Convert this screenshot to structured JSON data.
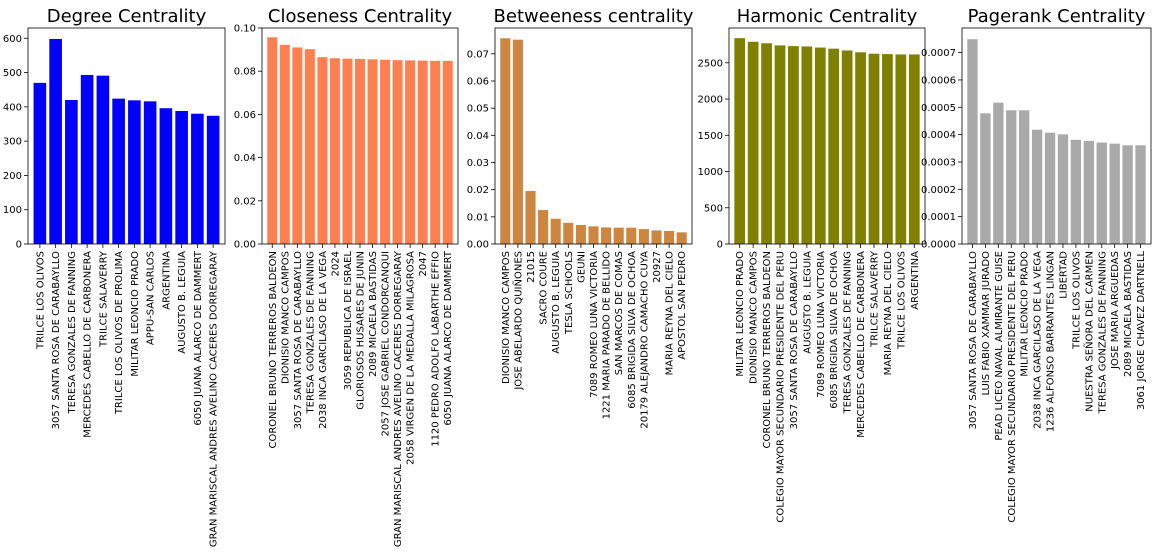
{
  "chart_data": [
    {
      "type": "bar",
      "title": "Degree Centrality",
      "color": "#0000ff",
      "ylim": [
        0,
        630
      ],
      "yticks": [
        0,
        100,
        200,
        300,
        400,
        500,
        600
      ],
      "ytick_labels": [
        "0",
        "100",
        "200",
        "300",
        "400",
        "500",
        "600"
      ],
      "categories": [
        "TRILCE LOS OLIVOS",
        "3057 SANTA ROSA DE CARABAYLLO",
        "TERESA GONZALES DE FANNING",
        "MERCEDES CABELLO DE CARBONERA",
        "TRILCE SALAVERRY",
        "TRILCE LOS OLIVOS DE PROLIMA",
        "MILITAR LEONCIO PRADO",
        "APPU-SAN CARLOS",
        "ARGENTINA",
        "AUGUSTO B. LEGUIA",
        "6050 JUANA ALARCO DE DAMMERT",
        "GRAN MARISCAL ANDRES AVELINO CACERES DORREGARAY"
      ],
      "values": [
        470,
        598,
        420,
        493,
        491,
        424,
        419,
        416,
        396,
        388,
        380,
        374
      ]
    },
    {
      "type": "bar",
      "title": "Closeness Centrality",
      "color": "#ff7f50",
      "ylim": [
        0,
        0.1
      ],
      "yticks": [
        0,
        0.02,
        0.04,
        0.06,
        0.08,
        0.1
      ],
      "ytick_labels": [
        "0.00",
        "0.02",
        "0.04",
        "0.06",
        "0.08",
        "0.10"
      ],
      "categories": [
        "CORONEL BRUNO TERREROS BALDEON",
        "DIONISIO MANCO CAMPOS",
        "3057 SANTA ROSA DE CARABAYLLO",
        "TERESA GONZALES DE FANNING",
        "2038 INCA GARCILASO DE LA VEGA",
        "2024",
        "3059 REPUBLICA DE ISRAEL",
        "GLORIOSOS HUSARES DE JUNIN",
        "2089 MICAELA BASTIDAS",
        "2057 JOSE GABRIEL CONDORCANQUI",
        "GRAN MARISCAL ANDRES AVELINO CACERES DORREGARAY",
        "2058 VIRGEN DE LA MEDALLA MILAGROSA",
        "2047",
        "1120 PEDRO ADOLFO LABARTHE EFFIO",
        "6050 JUANA ALARCO DE DAMMERT"
      ],
      "values": [
        0.0957,
        0.0922,
        0.091,
        0.0902,
        0.0865,
        0.086,
        0.0858,
        0.0857,
        0.0855,
        0.0853,
        0.0851,
        0.085,
        0.0849,
        0.0848,
        0.0848
      ]
    },
    {
      "type": "bar",
      "title": "Betweeness centrality",
      "color": "#cd853f",
      "ylim": [
        0,
        0.0795
      ],
      "yticks": [
        0,
        0.01,
        0.02,
        0.03,
        0.04,
        0.05,
        0.06,
        0.07
      ],
      "ytick_labels": [
        "0.00",
        "0.01",
        "0.02",
        "0.03",
        "0.04",
        "0.05",
        "0.06",
        "0.07"
      ],
      "categories": [
        "DIONISIO MANCO CAMPOS",
        "JOSE ABELARDO QUIÑONES",
        "21015",
        "SACRO COURE",
        "AUGUSTO B. LEGUIA",
        "TESLA SCHOOLS",
        "GEUNI",
        "7089 ROMEO LUNA VICTORIA",
        "1221 MARIA PARADO DE BELLIDO",
        "SAN MARCOS DE COMAS",
        "6085 BRIGIDA SILVA DE OCHOA",
        "20179 ALEJANDRO CAMACHO CUYA",
        "20927",
        "MARIA REYNA DEL CIELO",
        "APOSTOL SAN PEDRO"
      ],
      "values": [
        0.0757,
        0.0752,
        0.0195,
        0.0125,
        0.0093,
        0.0078,
        0.007,
        0.0065,
        0.0061,
        0.006,
        0.006,
        0.0055,
        0.005,
        0.0048,
        0.0043
      ]
    },
    {
      "type": "bar",
      "title": "Harmonic Centrality",
      "color": "#808000",
      "ylim": [
        0,
        2980
      ],
      "yticks": [
        0,
        500,
        1000,
        1500,
        2000,
        2500
      ],
      "ytick_labels": [
        "0",
        "500",
        "1000",
        "1500",
        "2000",
        "2500"
      ],
      "categories": [
        "MILITAR LEONCIO PRADO",
        "DIONISIO MANCO CAMPOS",
        "CORONEL BRUNO TERREROS BALDEON",
        "COLEGIO MAYOR SECUNDARIO PRESIDENTE DEL PERU",
        "3057 SANTA ROSA DE CARABAYLLO",
        "AUGUSTO B. LEGUIA",
        "7089 ROMEO LUNA VICTORIA",
        "6085 BRIGIDA SILVA DE OCHOA",
        "TERESA GONZALES DE FANNING",
        "MERCEDES CABELLO DE CARBONERA",
        "TRILCE SALAVERRY",
        "MARIA REYNA DEL CIELO",
        "TRILCE LOS OLIVOS",
        "ARGENTINA"
      ],
      "values": [
        2840,
        2790,
        2770,
        2740,
        2730,
        2725,
        2710,
        2695,
        2670,
        2645,
        2625,
        2620,
        2615,
        2615
      ]
    },
    {
      "type": "bar",
      "title": "Pagerank Centrality",
      "color": "#a9a9a9",
      "ylim": [
        0,
        0.00079
      ],
      "yticks": [
        0,
        0.0001,
        0.0002,
        0.0003,
        0.0004,
        0.0005,
        0.0006,
        0.0007
      ],
      "ytick_labels": [
        "0.0000",
        "0.0001",
        "0.0002",
        "0.0003",
        "0.0004",
        "0.0005",
        "0.0006",
        "0.0007"
      ],
      "categories": [
        "3057 SANTA ROSA DE CARABAYLLO",
        "LUIS FABIO XAMMAR JURADO",
        "PEAD LICEO NAVAL ALMIRANTE GUISE",
        "COLEGIO MAYOR SECUNDARIO PRESIDENTE DEL PERU",
        "MILITAR LEONCIO PRADO",
        "2038 INCA GARCILASO DE LA VEGA",
        "1236 ALFONSO BARRANTES LINGAN",
        "LIBERTAD",
        "TRILCE LOS OLIVOS",
        "NUESTRA SEÑORA DEL CARMEN",
        "TERESA GONZALES DE FANNING",
        "JOSE MARIA ARGUEDAS",
        "2089 MICAELA BASTIDAS",
        "3061 JORGE CHAVEZ DARTNELL"
      ],
      "values": [
        0.000749,
        0.000478,
        0.000517,
        0.000489,
        0.000489,
        0.000418,
        0.000407,
        0.000401,
        0.000381,
        0.000377,
        0.000371,
        0.000367,
        0.000361,
        0.000361
      ]
    }
  ]
}
